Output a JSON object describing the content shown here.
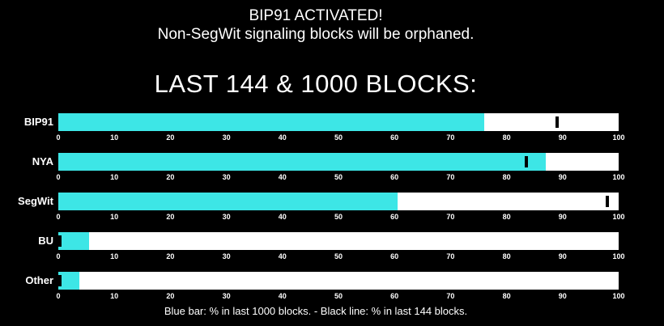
{
  "page": {
    "header_line1": "BIP91 ACTIVATED!",
    "header_line2": "Non-SegWit signaling blocks will be orphaned.",
    "title": "LAST 144 & 1000 BLOCKS:",
    "legend": "Blue bar: % in last 1000 blocks. - Black line: % in last 144 blocks."
  },
  "colors": {
    "background": "#000000",
    "bar_fill": "#3de6e6",
    "bar_track": "#ffffff",
    "marker": "#000000",
    "text": "#ffffff"
  },
  "chart_data": {
    "type": "bar",
    "orientation": "horizontal",
    "title": "LAST 144 & 1000 BLOCKS:",
    "categories": [
      "BIP91",
      "NYA",
      "SegWit",
      "BU",
      "Other"
    ],
    "series": [
      {
        "name": "% in last 1000 blocks",
        "render": "bar",
        "color": "#3de6e6",
        "values": [
          76,
          87,
          60.5,
          5.5,
          3.7
        ]
      },
      {
        "name": "% in last 144 blocks",
        "render": "line-marker",
        "color": "#000000",
        "values": [
          89,
          83.5,
          98,
          0.3,
          0.3
        ]
      }
    ],
    "xlim": [
      0,
      100
    ],
    "x_ticks": [
      0,
      10,
      20,
      30,
      40,
      50,
      60,
      70,
      80,
      90,
      100
    ],
    "grid": false,
    "legend_position": "bottom",
    "track_color": "#ffffff"
  }
}
